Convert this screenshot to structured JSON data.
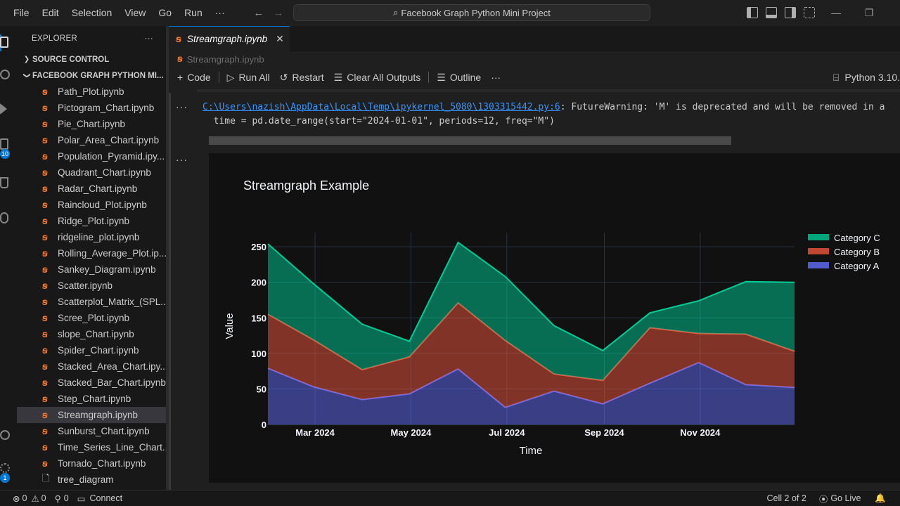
{
  "menu": [
    "File",
    "Edit",
    "Selection",
    "View",
    "Go",
    "Run",
    "···"
  ],
  "search": {
    "text": "Facebook Graph Python Mini Project"
  },
  "activity_badges": {
    "source_control": "10",
    "accounts": "1"
  },
  "explorer": {
    "title": "EXPLORER",
    "more": "···",
    "source_control": "SOURCE CONTROL",
    "project": "FACEBOOK GRAPH PYTHON MI...",
    "files": [
      "Path_Plot.ipynb",
      "Pictogram_Chart.ipynb",
      "Pie_Chart.ipynb",
      "Polar_Area_Chart.ipynb",
      "Population_Pyramid.ipy...",
      "Quadrant_Chart.ipynb",
      "Radar_Chart.ipynb",
      "Raincloud_Plot.ipynb",
      "Ridge_Plot.ipynb",
      "ridgeline_plot.ipynb",
      "Rolling_Average_Plot.ip...",
      "Sankey_Diagram.ipynb",
      "Scatter.ipynb",
      "Scatterplot_Matrix_(SPL...",
      "Scree_Plot.ipynb",
      "slope_Chart.ipynb",
      "Spider_Chart.ipynb",
      "Stacked_Area_Chart.ipy...",
      "Stacked_Bar_Chart.ipynb",
      "Step_Chart.ipynb",
      "Streamgraph.ipynb",
      "Sunburst_Chart.ipynb",
      "Time_Series_Line_Chart....",
      "Tornado_Chart.ipynb",
      "tree_diagram"
    ],
    "active_index": 20
  },
  "tab": {
    "label": "Streamgraph.ipynb",
    "close": "✕"
  },
  "breadcrumb": "Streamgraph.ipynb",
  "toolbar": {
    "code": "Code",
    "run_all": "Run All",
    "restart": "Restart",
    "clear": "Clear All Outputs",
    "outline": "Outline",
    "more": "···",
    "kernel": "Python 3.10."
  },
  "output": {
    "warning_path": "C:\\Users\\nazish\\AppData\\Local\\Temp\\ipykernel_5080\\1303315442.py:6",
    "warning_msg": ": FutureWarning: 'M' is deprecated and will be removed in a",
    "code_line": "  time = pd.date_range(start=\"2024-01-01\", periods=12, freq=\"M\")"
  },
  "chart_data": {
    "type": "area",
    "title": "Streamgraph Example",
    "xlabel": "Time",
    "ylabel": "Value",
    "x": [
      "2024-01-31",
      "2024-02-29",
      "2024-03-31",
      "2024-04-30",
      "2024-05-31",
      "2024-06-30",
      "2024-07-31",
      "2024-08-31",
      "2024-09-30",
      "2024-10-31",
      "2024-11-30",
      "2024-12-31"
    ],
    "xtick_labels": [
      "Mar 2024",
      "May 2024",
      "Jul 2024",
      "Sep 2024",
      "Nov 2024"
    ],
    "xtick_values": [
      "2024-03-01",
      "2024-05-01",
      "2024-07-01",
      "2024-09-01",
      "2024-11-01"
    ],
    "yticks": [
      0,
      50,
      100,
      150,
      200,
      250
    ],
    "ylim": [
      0,
      260
    ],
    "stacked": true,
    "legend_position": "top-right",
    "series": [
      {
        "name": "Category A",
        "color": "#636efa",
        "values": [
          79,
          53,
          35,
          43,
          78,
          24,
          47,
          29,
          58,
          87,
          56,
          52
        ]
      },
      {
        "name": "Category B",
        "color": "#ef553b",
        "values": [
          76,
          66,
          42,
          52,
          93,
          94,
          24,
          33,
          78,
          41,
          71,
          51
        ]
      },
      {
        "name": "Category C",
        "color": "#00cc96",
        "values": [
          99,
          79,
          64,
          22,
          85,
          90,
          68,
          42,
          21,
          46,
          74,
          97
        ]
      }
    ],
    "legend_order": [
      "Category C",
      "Category B",
      "Category A"
    ]
  },
  "status": {
    "errors": "0",
    "warnings": "0",
    "ports": "0",
    "connect": "Connect",
    "cell": "Cell 2 of 2",
    "golive": "Go Live"
  }
}
